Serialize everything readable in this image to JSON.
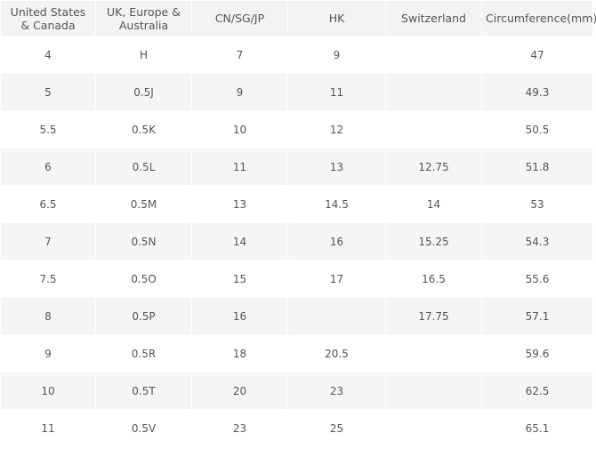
{
  "table": {
    "header": [
      "United States & Canada",
      "UK, Europe & Australia",
      "CN/SG/JP",
      "HK",
      "Switzerland",
      "Circumference(mm)"
    ],
    "rows": [
      [
        "4",
        "H",
        "7",
        "9",
        null,
        "47"
      ],
      [
        "5",
        "0.5J",
        "9",
        "11",
        null,
        "49.3"
      ],
      [
        "5.5",
        "0.5K",
        "10",
        "12",
        null,
        "50.5"
      ],
      [
        "6",
        "0.5L",
        "11",
        "13",
        "12.75",
        "51.8"
      ],
      [
        "6.5",
        "0.5M",
        "13",
        "14.5",
        "14",
        "53"
      ],
      [
        "7",
        "0.5N",
        "14",
        "16",
        "15.25",
        "54.3"
      ],
      [
        "7.5",
        "0.5O",
        "15",
        "17",
        "16.5",
        "55.6"
      ],
      [
        "8",
        "0.5P",
        "16",
        null,
        "17.75",
        "57.1"
      ],
      [
        "9",
        "0.5R",
        "18",
        "20.5",
        null,
        "59.6"
      ],
      [
        "10",
        "0.5T",
        "20",
        "23",
        null,
        "62.5"
      ],
      [
        "11",
        "0.5V",
        "23",
        "25",
        null,
        "65.1"
      ]
    ]
  }
}
